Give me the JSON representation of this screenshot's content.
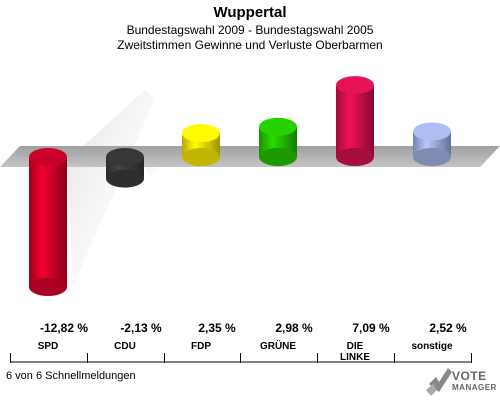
{
  "header": {
    "title": "Wuppertal",
    "subtitle1": "Bundestagswahl 2009 - Bundestagswahl 2005",
    "subtitle2": "Zweitstimmen Gewinne und Verluste Oberbarmen"
  },
  "footer": {
    "status": "6 von 6 Schnellmeldungen"
  },
  "logo": {
    "line1": "VOTE",
    "line2": "MANAGER"
  },
  "chart_data": {
    "type": "bar",
    "title": "Wuppertal",
    "subtitle": "Bundestagswahl 2009 - Bundestagswahl 2005 / Zweitstimmen Gewinne und Verluste Oberbarmen",
    "categories": [
      "SPD",
      "CDU",
      "FDP",
      "GRÜNE",
      "DIE LINKE",
      "sonstige"
    ],
    "values": [
      -12.82,
      -2.13,
      2.35,
      2.98,
      7.09,
      2.52
    ],
    "value_labels": [
      "-12,82 %",
      "-2,13 %",
      "2,35 %",
      "2,98 %",
      "7,09 %",
      "2,52 %"
    ],
    "category_labels": [
      [
        "SPD"
      ],
      [
        "CDU"
      ],
      [
        "FDP"
      ],
      [
        "GRÜNE"
      ],
      [
        "DIE",
        "LINKE"
      ],
      [
        "sonstige"
      ]
    ],
    "colors": [
      "#d4002a",
      "#3a3a3a",
      "#f2e400",
      "#22c000",
      "#d0104c",
      "#9faee0"
    ],
    "unit": "%"
  }
}
